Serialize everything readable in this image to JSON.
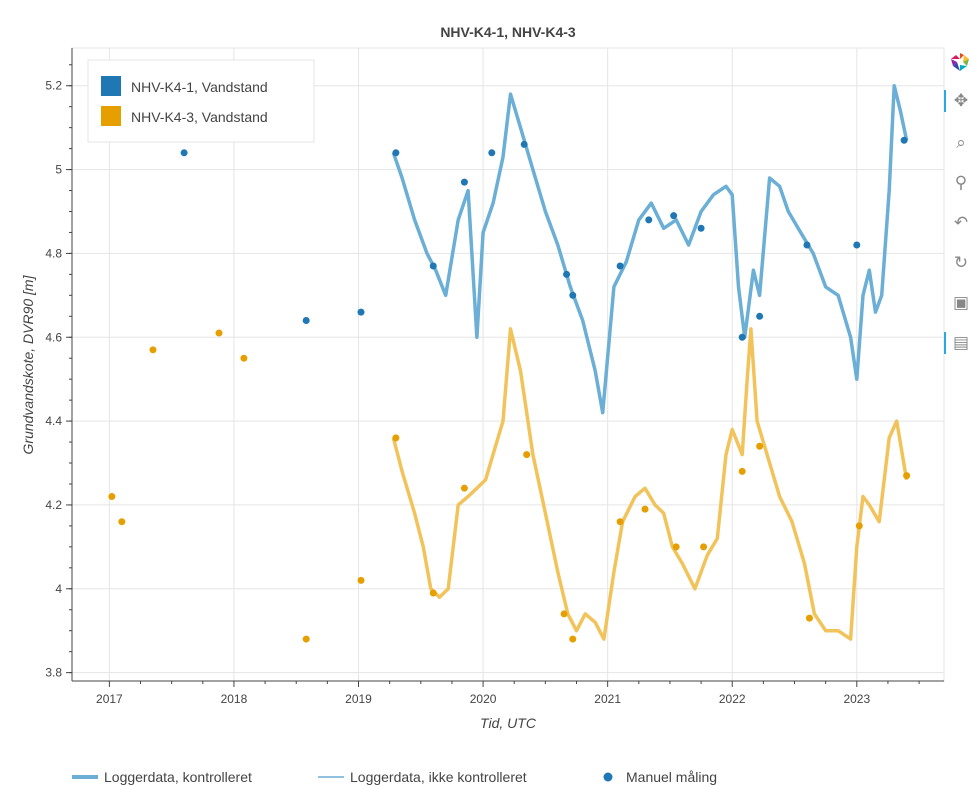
{
  "chart_data": {
    "type": "line",
    "title": "NHV-K4-1, NHV-K4-3",
    "xlabel": "Tid, UTC",
    "ylabel": "Grundvandskote, DVR90 [m]",
    "xlim": [
      2016.7,
      2023.7
    ],
    "ylim": [
      3.78,
      5.29
    ],
    "x_ticks": [
      "2017",
      "2018",
      "2019",
      "2020",
      "2021",
      "2022",
      "2023"
    ],
    "y_ticks": [
      "3.8",
      "4",
      "4.2",
      "4.4",
      "4.6",
      "4.8",
      "5",
      "5.2"
    ],
    "grid": true,
    "legend_top": {
      "placement": "top-left",
      "entries": [
        {
          "label": "NHV-K4-1, Vandstand",
          "color": "#1f77b4"
        },
        {
          "label": "NHV-K4-3, Vandstand",
          "color": "#e69f00"
        }
      ]
    },
    "legend_bottom": {
      "placement": "bottom",
      "entries": [
        {
          "label": "Loggerdata, kontrolleret",
          "style": "thick-line"
        },
        {
          "label": "Loggerdata, ikke kontrolleret",
          "style": "thin-line"
        },
        {
          "label": "Manuel måling",
          "style": "marker"
        }
      ]
    },
    "series": [
      {
        "name": "NHV-K4-1, Vandstand",
        "kind": "logger",
        "color": "#6baed6",
        "x": [
          2019.28,
          2019.35,
          2019.45,
          2019.55,
          2019.62,
          2019.7,
          2019.8,
          2019.88,
          2019.95,
          2020.0,
          2020.08,
          2020.16,
          2020.22,
          2020.3,
          2020.4,
          2020.5,
          2020.6,
          2020.7,
          2020.8,
          2020.9,
          2020.96,
          2021.05,
          2021.15,
          2021.25,
          2021.35,
          2021.45,
          2021.55,
          2021.65,
          2021.75,
          2021.85,
          2021.95,
          2022.0,
          2022.05,
          2022.1,
          2022.17,
          2022.22,
          2022.3,
          2022.38,
          2022.45,
          2022.55,
          2022.65,
          2022.75,
          2022.85,
          2022.95,
          2023.0,
          2023.05,
          2023.1,
          2023.15,
          2023.2,
          2023.26,
          2023.3,
          2023.35,
          2023.4
        ],
        "y": [
          5.04,
          4.98,
          4.88,
          4.8,
          4.76,
          4.7,
          4.88,
          4.95,
          4.6,
          4.85,
          4.92,
          5.03,
          5.18,
          5.1,
          5.0,
          4.9,
          4.82,
          4.72,
          4.64,
          4.52,
          4.42,
          4.72,
          4.78,
          4.88,
          4.92,
          4.86,
          4.88,
          4.82,
          4.9,
          4.94,
          4.96,
          4.94,
          4.72,
          4.6,
          4.76,
          4.7,
          4.98,
          4.96,
          4.9,
          4.85,
          4.8,
          4.72,
          4.7,
          4.6,
          4.5,
          4.7,
          4.76,
          4.66,
          4.7,
          4.95,
          5.2,
          5.14,
          5.07
        ]
      },
      {
        "name": "NHV-K4-3, Vandstand",
        "kind": "logger",
        "color": "#f2c35a",
        "x": [
          2019.28,
          2019.35,
          2019.45,
          2019.52,
          2019.58,
          2019.65,
          2019.72,
          2019.8,
          2019.88,
          2019.95,
          2020.02,
          2020.1,
          2020.16,
          2020.22,
          2020.3,
          2020.4,
          2020.5,
          2020.6,
          2020.68,
          2020.75,
          2020.82,
          2020.9,
          2020.97,
          2021.05,
          2021.12,
          2021.22,
          2021.3,
          2021.38,
          2021.45,
          2021.52,
          2021.6,
          2021.7,
          2021.8,
          2021.88,
          2021.95,
          2022.0,
          2022.08,
          2022.12,
          2022.15,
          2022.2,
          2022.28,
          2022.38,
          2022.48,
          2022.58,
          2022.66,
          2022.75,
          2022.85,
          2022.95,
          2023.0,
          2023.05,
          2023.1,
          2023.18,
          2023.26,
          2023.32,
          2023.4
        ],
        "y": [
          4.36,
          4.28,
          4.18,
          4.1,
          4.0,
          3.98,
          4.0,
          4.2,
          4.22,
          4.24,
          4.26,
          4.34,
          4.4,
          4.62,
          4.52,
          4.32,
          4.18,
          4.04,
          3.94,
          3.9,
          3.94,
          3.92,
          3.88,
          4.04,
          4.16,
          4.22,
          4.24,
          4.2,
          4.18,
          4.1,
          4.06,
          4.0,
          4.08,
          4.12,
          4.32,
          4.38,
          4.32,
          4.5,
          4.62,
          4.4,
          4.32,
          4.22,
          4.16,
          4.06,
          3.94,
          3.9,
          3.9,
          3.88,
          4.1,
          4.22,
          4.2,
          4.16,
          4.36,
          4.4,
          4.26
        ]
      },
      {
        "name": "NHV-K4-1, Vandstand",
        "kind": "manual",
        "color": "#1f77b4",
        "x": [
          2017.6,
          2018.58,
          2019.02,
          2019.3,
          2019.6,
          2019.85,
          2020.07,
          2020.33,
          2020.67,
          2020.72,
          2021.1,
          2021.33,
          2021.53,
          2021.75,
          2022.08,
          2022.22,
          2022.6,
          2023.0,
          2023.38
        ],
        "y": [
          5.04,
          4.64,
          4.66,
          5.04,
          4.77,
          4.97,
          5.04,
          5.06,
          4.75,
          4.7,
          4.77,
          4.88,
          4.89,
          4.86,
          4.6,
          4.65,
          4.82,
          4.82,
          5.07
        ]
      },
      {
        "name": "NHV-K4-3, Vandstand",
        "kind": "manual",
        "color": "#e69f00",
        "x": [
          2017.02,
          2017.1,
          2017.35,
          2017.88,
          2018.08,
          2018.58,
          2019.02,
          2019.3,
          2019.6,
          2019.85,
          2020.35,
          2020.65,
          2020.72,
          2021.1,
          2021.3,
          2021.55,
          2021.77,
          2022.08,
          2022.22,
          2022.62,
          2023.02,
          2023.4
        ],
        "y": [
          4.22,
          4.16,
          4.57,
          4.61,
          4.55,
          3.88,
          4.02,
          4.36,
          3.99,
          4.24,
          4.32,
          3.94,
          3.88,
          4.16,
          4.19,
          4.1,
          4.1,
          4.28,
          4.34,
          3.93,
          4.15,
          4.27
        ]
      }
    ]
  },
  "toolbar": {
    "tools": [
      {
        "name": "pan-tool",
        "icon": "move-icon",
        "glyph": "✥",
        "active": true
      },
      {
        "name": "box-zoom-tool",
        "icon": "box-zoom-icon",
        "glyph": "⌕",
        "active": false
      },
      {
        "name": "wheel-zoom-tool",
        "icon": "wheel-zoom-icon",
        "glyph": "⚲",
        "active": false
      },
      {
        "name": "undo-tool",
        "icon": "undo-icon",
        "glyph": "↶",
        "active": false
      },
      {
        "name": "reset-tool",
        "icon": "reset-icon",
        "glyph": "↻",
        "active": false
      },
      {
        "name": "save-tool",
        "icon": "save-icon",
        "glyph": "▣",
        "active": false
      },
      {
        "name": "hover-tool",
        "icon": "hover-icon",
        "glyph": "▤",
        "active": true
      }
    ]
  }
}
